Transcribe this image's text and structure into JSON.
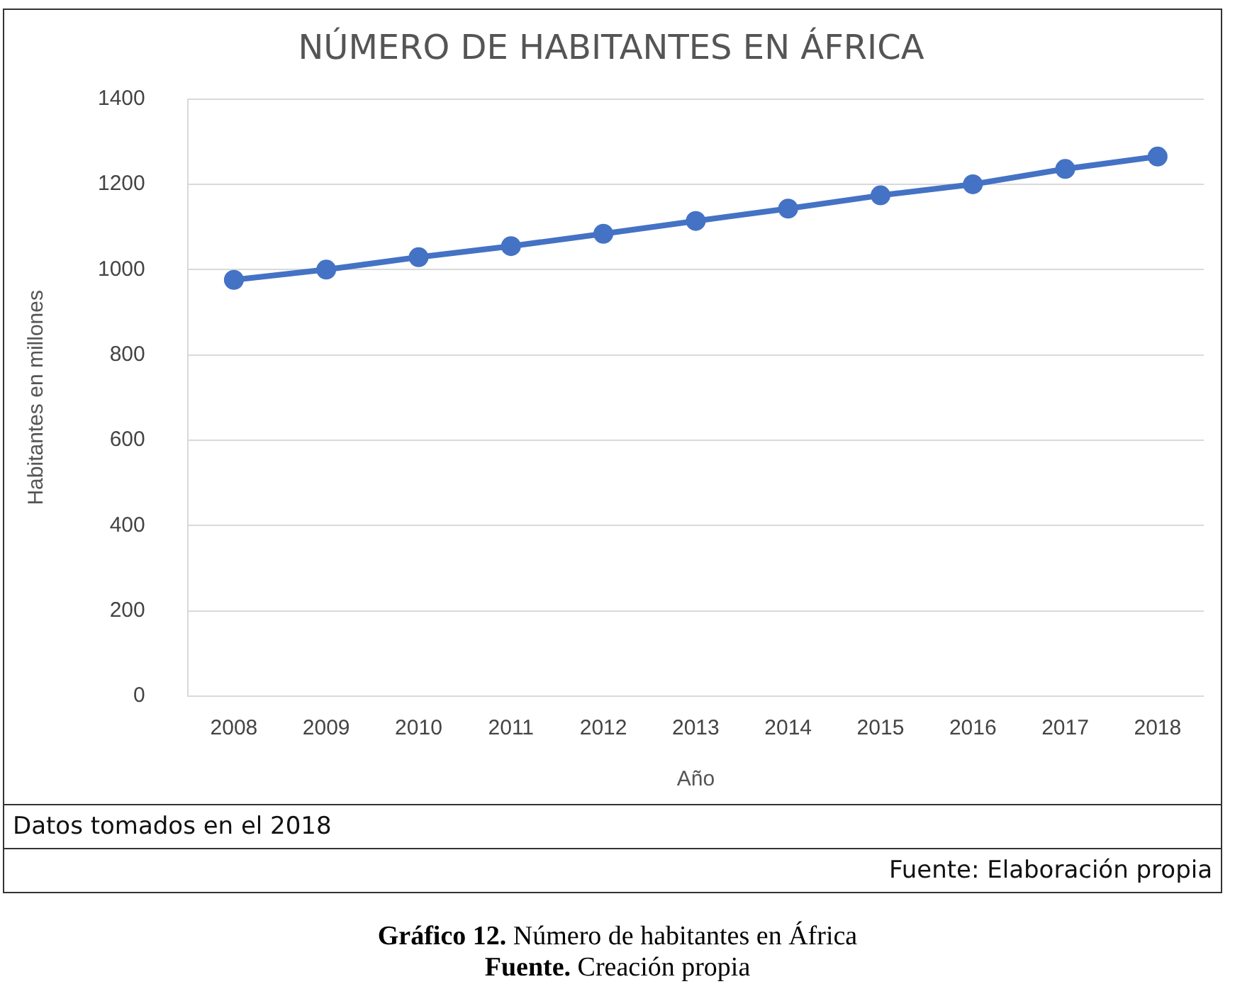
{
  "chart_data": {
    "type": "line",
    "title": "NÚMERO DE HABITANTES EN ÁFRICA",
    "xlabel": "Año",
    "ylabel": "Habitantes en millones",
    "categories": [
      "2008",
      "2009",
      "2010",
      "2011",
      "2012",
      "2013",
      "2014",
      "2015",
      "2016",
      "2017",
      "2018"
    ],
    "series": [
      {
        "color": "#4472c4",
        "values": [
          976,
          1000,
          1029,
          1055,
          1084,
          1114,
          1143,
          1174,
          1200,
          1236,
          1265
        ]
      }
    ],
    "ylim": [
      0,
      1400
    ],
    "yticks": [
      0,
      200,
      400,
      600,
      800,
      1000,
      1200,
      1400
    ],
    "grid": "y",
    "legend": false,
    "marker": "circle",
    "line_style": "solid",
    "annotations": [
      "Datos tomados en el 2018",
      "Fuente: Elaboración propia",
      "Gráfico 12. Número de habitantes en África",
      "Fuente. Creación propia"
    ]
  }
}
